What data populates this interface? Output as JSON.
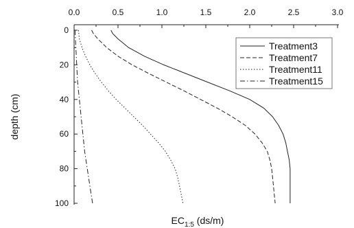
{
  "chart_data": {
    "type": "line",
    "title": "",
    "xlabel": "EC",
    "xlabel_subscript": "1:5",
    "xlabel_suffix": " (ds/m)",
    "ylabel": "depth (cm)",
    "xlim": [
      0,
      3
    ],
    "ylim": [
      0,
      100
    ],
    "y_inverted": true,
    "x_axis_position": "top",
    "xticks": [
      0,
      0.5,
      1,
      1.5,
      2,
      2.5,
      3
    ],
    "xtick_labels": [
      "0.0",
      "0.5",
      "1.0",
      "1.5",
      "2.0",
      "2.5",
      "3.0"
    ],
    "yticks": [
      0,
      20,
      40,
      60,
      80,
      100
    ],
    "ytick_labels": [
      "0",
      "20",
      "40",
      "60",
      "80",
      "100"
    ],
    "grid": false,
    "legend_position": "top-right",
    "series": [
      {
        "name": "Treatment3",
        "style": "solid",
        "points": [
          [
            0.42,
            0
          ],
          [
            0.44,
            2
          ],
          [
            0.5,
            5
          ],
          [
            0.62,
            10
          ],
          [
            0.8,
            15
          ],
          [
            1.02,
            20
          ],
          [
            1.27,
            25
          ],
          [
            1.52,
            30
          ],
          [
            1.77,
            35
          ],
          [
            2.0,
            40
          ],
          [
            2.16,
            45
          ],
          [
            2.26,
            50
          ],
          [
            2.33,
            55
          ],
          [
            2.38,
            60
          ],
          [
            2.41,
            65
          ],
          [
            2.43,
            70
          ],
          [
            2.45,
            75
          ],
          [
            2.46,
            80
          ],
          [
            2.46,
            85
          ],
          [
            2.46,
            90
          ],
          [
            2.46,
            95
          ],
          [
            2.46,
            100
          ]
        ]
      },
      {
        "name": "Treatment7",
        "style": "dashed",
        "points": [
          [
            0.2,
            0
          ],
          [
            0.22,
            2
          ],
          [
            0.27,
            5
          ],
          [
            0.37,
            10
          ],
          [
            0.5,
            15
          ],
          [
            0.66,
            20
          ],
          [
            0.85,
            25
          ],
          [
            1.05,
            30
          ],
          [
            1.25,
            35
          ],
          [
            1.44,
            40
          ],
          [
            1.63,
            45
          ],
          [
            1.8,
            50
          ],
          [
            1.95,
            55
          ],
          [
            2.06,
            60
          ],
          [
            2.14,
            65
          ],
          [
            2.2,
            70
          ],
          [
            2.23,
            75
          ],
          [
            2.25,
            80
          ],
          [
            2.26,
            85
          ],
          [
            2.27,
            90
          ],
          [
            2.28,
            95
          ],
          [
            2.29,
            100
          ]
        ]
      },
      {
        "name": "Treatment11",
        "style": "dotted",
        "points": [
          [
            0.05,
            0
          ],
          [
            0.06,
            5
          ],
          [
            0.09,
            10
          ],
          [
            0.13,
            15
          ],
          [
            0.18,
            20
          ],
          [
            0.24,
            25
          ],
          [
            0.31,
            30
          ],
          [
            0.39,
            35
          ],
          [
            0.48,
            40
          ],
          [
            0.58,
            45
          ],
          [
            0.68,
            50
          ],
          [
            0.78,
            55
          ],
          [
            0.87,
            60
          ],
          [
            0.96,
            65
          ],
          [
            1.04,
            70
          ],
          [
            1.1,
            75
          ],
          [
            1.15,
            80
          ],
          [
            1.18,
            85
          ],
          [
            1.2,
            90
          ],
          [
            1.22,
            95
          ],
          [
            1.24,
            100
          ]
        ]
      },
      {
        "name": "Treatment15",
        "style": "dashdot",
        "points": [
          [
            0.01,
            0
          ],
          [
            0.02,
            10
          ],
          [
            0.03,
            20
          ],
          [
            0.04,
            30
          ],
          [
            0.06,
            40
          ],
          [
            0.08,
            50
          ],
          [
            0.1,
            60
          ],
          [
            0.12,
            70
          ],
          [
            0.15,
            80
          ],
          [
            0.18,
            90
          ],
          [
            0.21,
            100
          ]
        ]
      }
    ]
  }
}
